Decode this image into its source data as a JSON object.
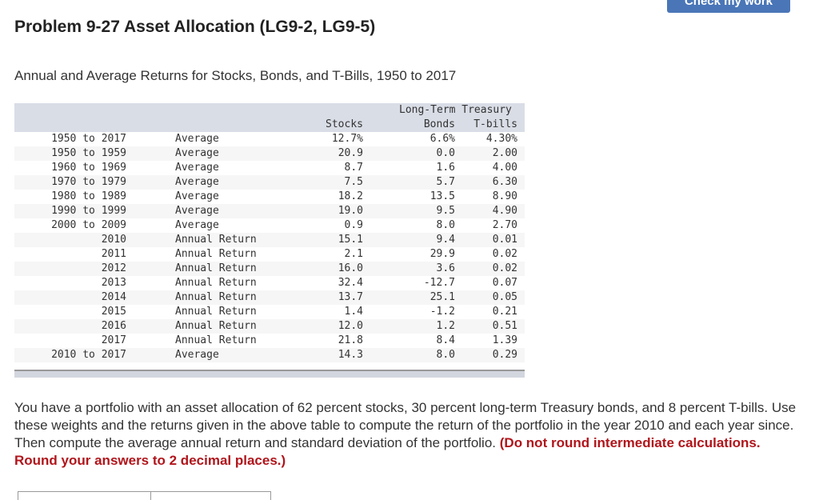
{
  "header": {
    "check_button": "Check my work",
    "title": "Problem 9-27 Asset Allocation (LG9-2, LG9-5)"
  },
  "subtitle": "Annual and Average Returns for Stocks, Bonds, and T-Bills, 1950 to 2017",
  "table": {
    "header_top": "Long-Term Treasury",
    "columns": [
      "Stocks",
      "Bonds",
      "T-bills"
    ],
    "rows": [
      {
        "period": "1950 to 2017",
        "type": "Average",
        "stocks": "12.7%",
        "bonds": "6.6%",
        "tbills": "4.30%"
      },
      {
        "period": "1950 to 1959",
        "type": "Average",
        "stocks": "20.9",
        "bonds": "0.0",
        "tbills": "2.00"
      },
      {
        "period": "1960 to 1969",
        "type": "Average",
        "stocks": "8.7",
        "bonds": "1.6",
        "tbills": "4.00"
      },
      {
        "period": "1970 to 1979",
        "type": "Average",
        "stocks": "7.5",
        "bonds": "5.7",
        "tbills": "6.30"
      },
      {
        "period": "1980 to 1989",
        "type": "Average",
        "stocks": "18.2",
        "bonds": "13.5",
        "tbills": "8.90"
      },
      {
        "period": "1990 to 1999",
        "type": "Average",
        "stocks": "19.0",
        "bonds": "9.5",
        "tbills": "4.90"
      },
      {
        "period": "2000 to 2009",
        "type": "Average",
        "stocks": "0.9",
        "bonds": "8.0",
        "tbills": "2.70"
      },
      {
        "period": "2010",
        "type": "Annual Return",
        "stocks": "15.1",
        "bonds": "9.4",
        "tbills": "0.01"
      },
      {
        "period": "2011",
        "type": "Annual Return",
        "stocks": "2.1",
        "bonds": "29.9",
        "tbills": "0.02"
      },
      {
        "period": "2012",
        "type": "Annual Return",
        "stocks": "16.0",
        "bonds": "3.6",
        "tbills": "0.02"
      },
      {
        "period": "2013",
        "type": "Annual Return",
        "stocks": "32.4",
        "bonds": "-12.7",
        "tbills": "0.07"
      },
      {
        "period": "2014",
        "type": "Annual Return",
        "stocks": "13.7",
        "bonds": "25.1",
        "tbills": "0.05"
      },
      {
        "period": "2015",
        "type": "Annual Return",
        "stocks": "1.4",
        "bonds": "-1.2",
        "tbills": "0.21"
      },
      {
        "period": "2016",
        "type": "Annual Return",
        "stocks": "12.0",
        "bonds": "1.2",
        "tbills": "0.51"
      },
      {
        "period": "2017",
        "type": "Annual Return",
        "stocks": "21.8",
        "bonds": "8.4",
        "tbills": "1.39"
      },
      {
        "period": "2010 to 2017",
        "type": "Average",
        "stocks": "14.3",
        "bonds": "8.0",
        "tbills": "0.29"
      }
    ]
  },
  "question": {
    "text": "You have a portfolio with an asset allocation of 62 percent stocks, 30 percent long-term Treasury bonds, and 8 percent T-bills. Use these weights and the returns given in the above table to compute the return of the portfolio in the year 2010 and each year since. Then compute the average annual return and standard deviation of the portfolio.",
    "instruction": "(Do not round intermediate calculations. Round your answers to 2 decimal places.)"
  },
  "colors": {
    "button": "#4a76b8",
    "header_band": "#d9dde6",
    "instruction": "#b0151b"
  }
}
